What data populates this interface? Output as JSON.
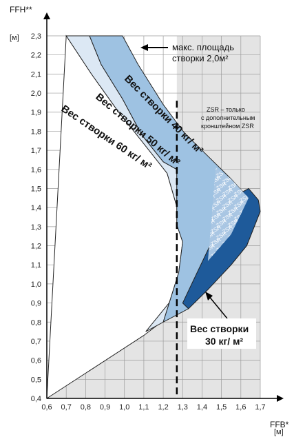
{
  "chart_data": {
    "type": "area",
    "title": "",
    "xlabel": "FFB*",
    "xunit": "[м]",
    "ylabel": "FFH**",
    "yunit": "[м]",
    "xlim": [
      0.6,
      1.7
    ],
    "ylim": [
      0.4,
      2.3
    ],
    "x_ticks": [
      "0,6",
      "0,7",
      "0,8",
      "0,9",
      "1,0",
      "1,1",
      "1,2",
      "1,3",
      "1,4",
      "1,5",
      "1,6",
      "1,7"
    ],
    "y_ticks": [
      "0,4",
      "0,5",
      "0,6",
      "0,7",
      "0,8",
      "0,9",
      "1,0",
      "1,1",
      "1,2",
      "1,3",
      "1,4",
      "1,5",
      "1,6",
      "1,7",
      "1,8",
      "1,9",
      "2,0",
      "2,1",
      "2,2",
      "2,3"
    ],
    "grid": true,
    "dashed_vline_x": 1.27,
    "series": [
      {
        "name": "Вес створки 60 кг/ м²",
        "points": [
          [
            0.6,
            0.4
          ],
          [
            1.1,
            0.73
          ],
          [
            1.19,
            0.8
          ],
          [
            1.27,
            0.95
          ],
          [
            1.32,
            1.23
          ],
          [
            1.22,
            1.58
          ],
          [
            1.08,
            1.76
          ],
          [
            0.97,
            1.9
          ],
          [
            0.83,
            2.1
          ],
          [
            0.7,
            2.3
          ]
        ]
      },
      {
        "name": "Вес створки 50 кг/ м²",
        "points": [
          [
            1.11,
            0.75
          ],
          [
            1.27,
            0.95
          ],
          [
            1.32,
            1.23
          ],
          [
            1.22,
            1.58
          ],
          [
            1.08,
            1.76
          ],
          [
            0.97,
            1.9
          ],
          [
            0.83,
            2.1
          ],
          [
            0.7,
            2.3
          ],
          [
            0.82,
            2.3
          ],
          [
            0.88,
            2.15
          ],
          [
            0.99,
            1.97
          ],
          [
            1.09,
            1.78
          ],
          [
            1.2,
            1.64
          ],
          [
            1.27,
            1.6
          ],
          [
            1.27,
            1.31
          ],
          [
            1.3,
            1.22
          ],
          [
            1.28,
            1.06
          ],
          [
            1.2,
            0.8
          ]
        ]
      },
      {
        "name": "Вес створки 40 кг/ м²",
        "points": [
          [
            1.2,
            0.8
          ],
          [
            1.28,
            1.06
          ],
          [
            1.3,
            1.22
          ],
          [
            1.27,
            1.31
          ],
          [
            1.27,
            1.6
          ],
          [
            1.2,
            1.64
          ],
          [
            1.09,
            1.78
          ],
          [
            0.99,
            1.97
          ],
          [
            0.88,
            2.15
          ],
          [
            0.82,
            2.3
          ],
          [
            0.99,
            2.3
          ],
          [
            1.07,
            2.15
          ],
          [
            1.2,
            1.94
          ],
          [
            1.31,
            1.79
          ],
          [
            1.44,
            1.66
          ],
          [
            1.55,
            1.55
          ],
          [
            1.64,
            1.45
          ],
          [
            1.7,
            1.38
          ],
          [
            1.63,
            1.2
          ],
          [
            1.55,
            1.1
          ],
          [
            1.43,
            0.97
          ],
          [
            1.33,
            0.87
          ]
        ]
      },
      {
        "name": "Вес створки 30 кг/ м²",
        "points": [
          [
            1.33,
            0.87
          ],
          [
            1.43,
            0.97
          ],
          [
            1.55,
            1.1
          ],
          [
            1.63,
            1.2
          ],
          [
            1.7,
            1.38
          ],
          [
            1.69,
            1.44
          ],
          [
            1.64,
            1.5
          ],
          [
            1.55,
            1.45
          ],
          [
            1.45,
            1.22
          ],
          [
            1.37,
            1.05
          ],
          [
            1.3,
            0.9
          ]
        ]
      }
    ],
    "zsr_region": {
      "label_lines": [
        "ZSR – только",
        "с дополнительным",
        "кронштейном ZSR"
      ],
      "hatch_text": "ZSR"
    },
    "annotations": {
      "max_area_line1": "макс. площадь",
      "max_area_line2": "створки 2,0м²"
    }
  }
}
